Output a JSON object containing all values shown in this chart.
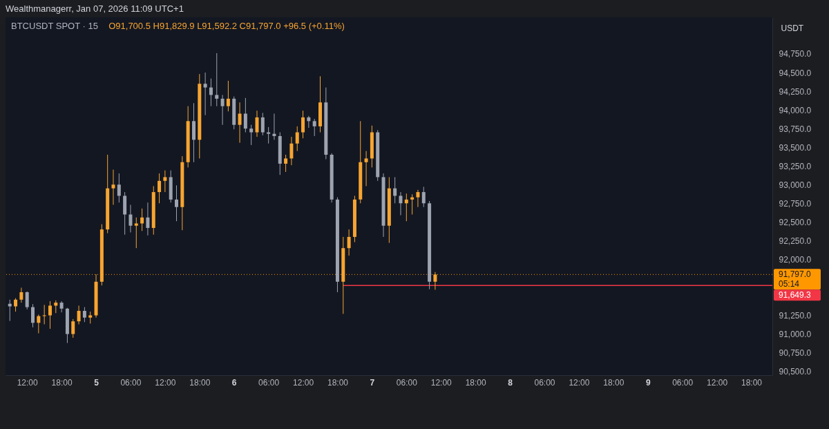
{
  "chart_data": {
    "type": "candlestick",
    "title": "BTCUSDT SPOT · 15",
    "subtitle": "O91,700.5 H91,829.9 L91,592.2 C91,797.0 +96.5 (+0.11%)",
    "ylabel": "USDT",
    "annotations": [
      "Wealthmanagerr, Jan 07, 2026 11:09 UTC+1",
      "05:14"
    ],
    "x": [
      "2026-01-04T09:00",
      "2026-01-04T10:00",
      "2026-01-04T11:00",
      "2026-01-04T12:00",
      "2026-01-04T13:00",
      "2026-01-04T14:00",
      "2026-01-04T15:00",
      "2026-01-04T16:00",
      "2026-01-04T17:00",
      "2026-01-04T18:00",
      "2026-01-04T19:00",
      "2026-01-04T20:00",
      "2026-01-04T21:00",
      "2026-01-04T22:00",
      "2026-01-04T23:00",
      "2026-01-05T00:00",
      "2026-01-05T01:00",
      "2026-01-05T02:00",
      "2026-01-05T03:00",
      "2026-01-05T04:00",
      "2026-01-05T05:00",
      "2026-01-05T06:00",
      "2026-01-05T07:00",
      "2026-01-05T08:00",
      "2026-01-05T09:00",
      "2026-01-05T10:00",
      "2026-01-05T11:00",
      "2026-01-05T12:00",
      "2026-01-05T13:00",
      "2026-01-05T14:00",
      "2026-01-05T15:00",
      "2026-01-05T16:00",
      "2026-01-05T17:00",
      "2026-01-05T18:00",
      "2026-01-05T19:00",
      "2026-01-05T20:00",
      "2026-01-05T21:00",
      "2026-01-05T22:00",
      "2026-01-05T23:00",
      "2026-01-06T00:00",
      "2026-01-06T01:00",
      "2026-01-06T02:00",
      "2026-01-06T03:00",
      "2026-01-06T04:00",
      "2026-01-06T05:00",
      "2026-01-06T06:00",
      "2026-01-06T07:00",
      "2026-01-06T08:00",
      "2026-01-06T09:00",
      "2026-01-06T10:00",
      "2026-01-06T11:00",
      "2026-01-06T12:00",
      "2026-01-06T13:00",
      "2026-01-06T14:00",
      "2026-01-06T15:00",
      "2026-01-06T16:00",
      "2026-01-06T17:00",
      "2026-01-06T18:00",
      "2026-01-06T19:00",
      "2026-01-06T20:00",
      "2026-01-06T21:00",
      "2026-01-06T22:00",
      "2026-01-06T23:00",
      "2026-01-07T00:00",
      "2026-01-07T01:00",
      "2026-01-07T02:00",
      "2026-01-07T03:00",
      "2026-01-07T04:00",
      "2026-01-07T05:00",
      "2026-01-07T06:00",
      "2026-01-07T07:00",
      "2026-01-07T08:00",
      "2026-01-07T09:00",
      "2026-01-07T10:00",
      "2026-01-07T11:00"
    ],
    "ohlc": [
      [
        91405,
        91460,
        91175,
        91370
      ],
      [
        91370,
        91480,
        91300,
        91460
      ],
      [
        91460,
        91620,
        91420,
        91560
      ],
      [
        91560,
        91570,
        91330,
        91360
      ],
      [
        91360,
        91400,
        91090,
        91150
      ],
      [
        91150,
        91260,
        91010,
        91240
      ],
      [
        91240,
        91390,
        91130,
        91250
      ],
      [
        91250,
        91440,
        91070,
        91380
      ],
      [
        91380,
        91450,
        91280,
        91420
      ],
      [
        91420,
        91440,
        91290,
        91340
      ],
      [
        91340,
        91350,
        90880,
        91000
      ],
      [
        91000,
        91200,
        90950,
        91170
      ],
      [
        91170,
        91380,
        91130,
        91310
      ],
      [
        91310,
        91360,
        91160,
        91220
      ],
      [
        91220,
        91300,
        91140,
        91250
      ],
      [
        91250,
        91800,
        91220,
        91700
      ],
      [
        91700,
        92470,
        91650,
        92400
      ],
      [
        92400,
        93400,
        92350,
        92950
      ],
      [
        92950,
        93200,
        92730,
        93000
      ],
      [
        93000,
        93150,
        92760,
        92850
      ],
      [
        92850,
        92900,
        92330,
        92600
      ],
      [
        92600,
        92730,
        92360,
        92450
      ],
      [
        92450,
        92560,
        92150,
        92480
      ],
      [
        92480,
        92680,
        92380,
        92560
      ],
      [
        92560,
        92760,
        92320,
        92420
      ],
      [
        92420,
        92980,
        92330,
        92900
      ],
      [
        92900,
        93150,
        92750,
        93050
      ],
      [
        93050,
        93190,
        92900,
        93100
      ],
      [
        93100,
        93190,
        92760,
        92800
      ],
      [
        92800,
        92990,
        92510,
        92700
      ],
      [
        92700,
        93380,
        92390,
        93300
      ],
      [
        93300,
        94050,
        93230,
        93850
      ],
      [
        93850,
        94090,
        93300,
        93600
      ],
      [
        93600,
        94480,
        93350,
        94350
      ],
      [
        94350,
        94500,
        93930,
        94300
      ],
      [
        94300,
        94420,
        94050,
        94200
      ],
      [
        94200,
        94760,
        94050,
        94150
      ],
      [
        94150,
        94200,
        93800,
        94050
      ],
      [
        94050,
        94390,
        93980,
        94150
      ],
      [
        94150,
        94180,
        93740,
        93800
      ],
      [
        93800,
        94100,
        93560,
        93950
      ],
      [
        93950,
        94160,
        93700,
        93750
      ],
      [
        93750,
        93800,
        93530,
        93700
      ],
      [
        93700,
        93990,
        93640,
        93900
      ],
      [
        93900,
        93960,
        93660,
        93700
      ],
      [
        93700,
        93770,
        93550,
        93680
      ],
      [
        93680,
        93950,
        93600,
        93650
      ],
      [
        93650,
        93700,
        93130,
        93280
      ],
      [
        93280,
        93400,
        93170,
        93350
      ],
      [
        93350,
        93640,
        93260,
        93550
      ],
      [
        93550,
        93780,
        93450,
        93700
      ],
      [
        93700,
        93990,
        93620,
        93900
      ],
      [
        93900,
        93920,
        93760,
        93850
      ],
      [
        93850,
        93880,
        93650,
        93780
      ],
      [
        93780,
        94450,
        93700,
        94100
      ],
      [
        94100,
        94300,
        93340,
        93400
      ],
      [
        93400,
        93420,
        92760,
        92800
      ],
      [
        92800,
        92830,
        91560,
        91700
      ],
      [
        91700,
        92300,
        91270,
        92150
      ],
      [
        92150,
        92400,
        92050,
        92300
      ],
      [
        92300,
        92850,
        92230,
        92800
      ],
      [
        92800,
        93850,
        92750,
        93300
      ],
      [
        93300,
        93450,
        92980,
        93350
      ],
      [
        93350,
        93790,
        93230,
        93700
      ],
      [
        93700,
        93730,
        93050,
        93100
      ],
      [
        93100,
        93150,
        92300,
        92450
      ],
      [
        92450,
        93100,
        92220,
        92950
      ],
      [
        92950,
        93100,
        92750,
        92850
      ],
      [
        92850,
        92900,
        92590,
        92750
      ],
      [
        92750,
        92880,
        92510,
        92800
      ],
      [
        92800,
        92870,
        92600,
        92830
      ],
      [
        92830,
        92930,
        92700,
        92900
      ],
      [
        92900,
        92970,
        92700,
        92750
      ],
      [
        92750,
        92780,
        91600,
        91700.5
      ],
      [
        91700.5,
        91829.9,
        91592.2,
        91797.0
      ]
    ],
    "colors": [
      "#9ea3b0",
      "#f7a531",
      "#f7a531",
      "#9ea3b0",
      "#9ea3b0",
      "#f7a531",
      "#f7a531",
      "#f7a531",
      "#f7a531",
      "#9ea3b0",
      "#9ea3b0",
      "#f7a531",
      "#f7a531",
      "#9ea3b0",
      "#f7a531",
      "#f7a531",
      "#f7a531",
      "#f7a531",
      "#f7a531",
      "#9ea3b0",
      "#9ea3b0",
      "#9ea3b0",
      "#f7a531",
      "#f7a531",
      "#9ea3b0",
      "#f7a531",
      "#f7a531",
      "#f7a531",
      "#9ea3b0",
      "#9ea3b0",
      "#f7a531",
      "#f7a531",
      "#9ea3b0",
      "#f7a531",
      "#9ea3b0",
      "#9ea3b0",
      "#9ea3b0",
      "#9ea3b0",
      "#f7a531",
      "#9ea3b0",
      "#f7a531",
      "#9ea3b0",
      "#9ea3b0",
      "#f7a531",
      "#9ea3b0",
      "#9ea3b0",
      "#9ea3b0",
      "#9ea3b0",
      "#f7a531",
      "#f7a531",
      "#f7a531",
      "#f7a531",
      "#9ea3b0",
      "#9ea3b0",
      "#f7a531",
      "#9ea3b0",
      "#9ea3b0",
      "#9ea3b0",
      "#f7a531",
      "#f7a531",
      "#f7a531",
      "#f7a531",
      "#f7a531",
      "#f7a531",
      "#9ea3b0",
      "#9ea3b0",
      "#f7a531",
      "#9ea3b0",
      "#9ea3b0",
      "#f7a531",
      "#f7a531",
      "#f7a531",
      "#9ea3b0",
      "#9ea3b0",
      "#f7a531"
    ],
    "series": [
      {
        "type": "line",
        "name": "91,649.3",
        "color": "#f23645",
        "x": [
          "2026-01-06T19:00",
          "2026-01-09T21:40"
        ],
        "values": [
          91649.3,
          91649.3
        ]
      }
    ],
    "ref_lines": [
      {
        "axis": "y",
        "value": 91797.0,
        "label": "91,797.0",
        "color": "#ff9800",
        "line_style": "dotted"
      }
    ],
    "xlim": [
      "2026-01-04T08:15",
      "2026-01-09T21:40"
    ],
    "ylim": [
      90450,
      95240
    ],
    "xticks": [
      {
        "value": "2026-01-04T12:00",
        "label": "12:00"
      },
      {
        "value": "2026-01-04T18:00",
        "label": "18:00"
      },
      {
        "value": "2026-01-05T00:00",
        "label": "5"
      },
      {
        "value": "2026-01-05T06:00",
        "label": "06:00"
      },
      {
        "value": "2026-01-05T12:00",
        "label": "12:00"
      },
      {
        "value": "2026-01-05T18:00",
        "label": "18:00"
      },
      {
        "value": "2026-01-06T00:00",
        "label": "6"
      },
      {
        "value": "2026-01-06T06:00",
        "label": "06:00"
      },
      {
        "value": "2026-01-06T12:00",
        "label": "12:00"
      },
      {
        "value": "2026-01-06T18:00",
        "label": "18:00"
      },
      {
        "value": "2026-01-07T00:00",
        "label": "7"
      },
      {
        "value": "2026-01-07T06:00",
        "label": "06:00"
      },
      {
        "value": "2026-01-07T12:00",
        "label": "12:00"
      },
      {
        "value": "2026-01-07T18:00",
        "label": "18:00"
      },
      {
        "value": "2026-01-08T00:00",
        "label": "8"
      },
      {
        "value": "2026-01-08T06:00",
        "label": "06:00"
      },
      {
        "value": "2026-01-08T12:00",
        "label": "12:00"
      },
      {
        "value": "2026-01-08T18:00",
        "label": "18:00"
      },
      {
        "value": "2026-01-09T00:00",
        "label": "9"
      },
      {
        "value": "2026-01-09T06:00",
        "label": "06:00"
      },
      {
        "value": "2026-01-09T12:00",
        "label": "12:00"
      },
      {
        "value": "2026-01-09T18:00",
        "label": "18:00"
      }
    ],
    "yticks": [
      {
        "value": 90500,
        "label": "90,500.0"
      },
      {
        "value": 90750,
        "label": "90,750.0"
      },
      {
        "value": 91000,
        "label": "91,000.0"
      },
      {
        "value": 91250,
        "label": "91,250.0"
      },
      {
        "value": 92000,
        "label": "92,000.0"
      },
      {
        "value": 92250,
        "label": "92,250.0"
      },
      {
        "value": 92500,
        "label": "92,500.0"
      },
      {
        "value": 92750,
        "label": "92,750.0"
      },
      {
        "value": 93000,
        "label": "93,000.0"
      },
      {
        "value": 93250,
        "label": "93,250.0"
      },
      {
        "value": 93500,
        "label": "93,500.0"
      },
      {
        "value": 93750,
        "label": "93,750.0"
      },
      {
        "value": 94000,
        "label": "94,000.0"
      },
      {
        "value": 94250,
        "label": "94,250.0"
      },
      {
        "value": 94500,
        "label": "94,500.0"
      },
      {
        "value": 94750,
        "label": "94,750.0"
      }
    ]
  }
}
